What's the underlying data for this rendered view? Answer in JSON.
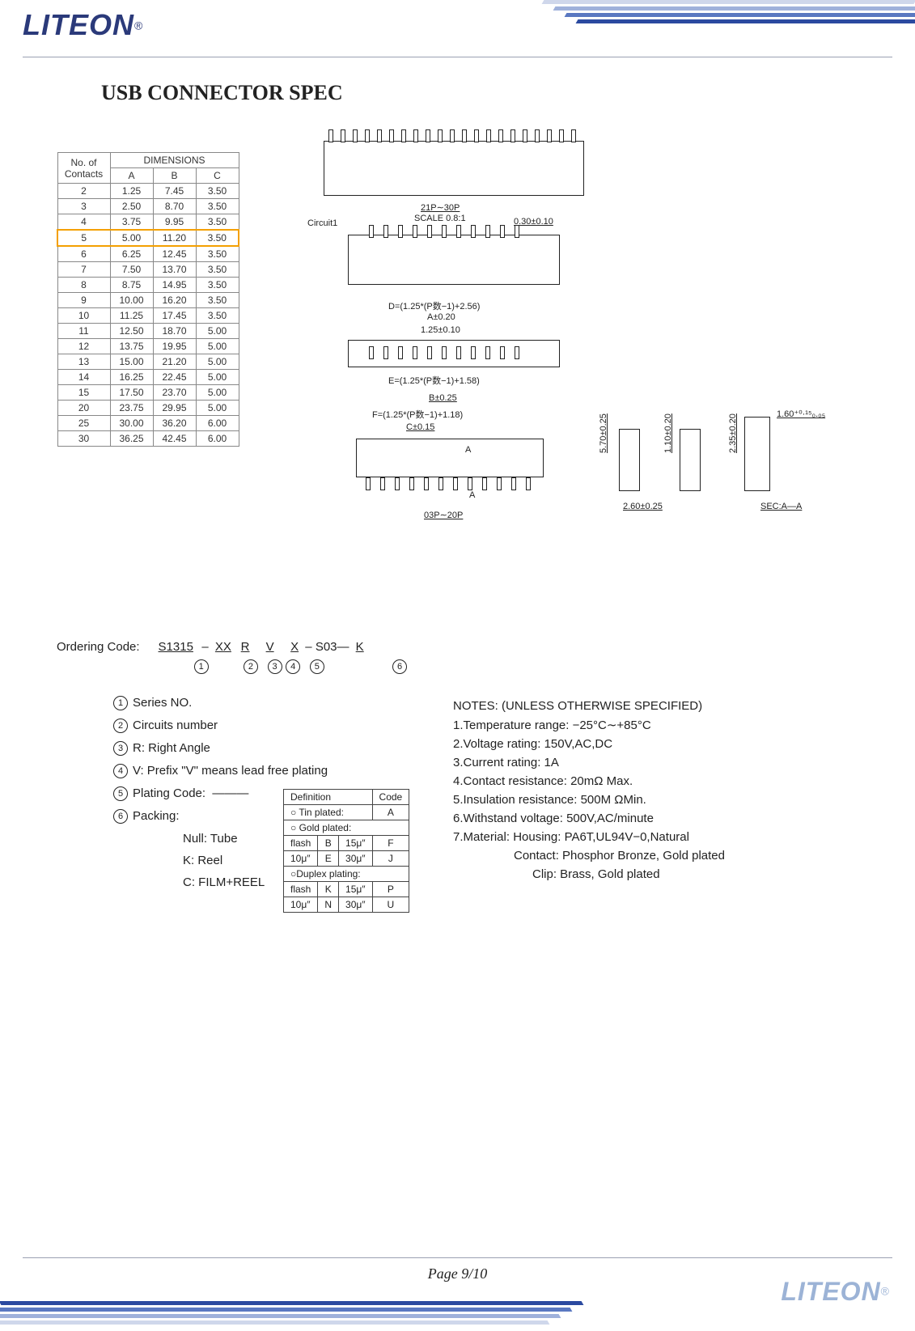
{
  "brand": "LITEON",
  "title_main": "USB C",
  "title_rest1": "ONNECTOR",
  "title_rest2": " S",
  "title_rest3": "PEC",
  "swoosh_colors": [
    "#cfd7eb",
    "#9fb1db",
    "#5a78c1",
    "#2b4aa0"
  ],
  "highlight_color": "#f4a000",
  "dim": {
    "hdr_contacts_1": "No.  of",
    "hdr_contacts_2": "Contacts",
    "hdr_dimensions": "DIMENSIONS",
    "cols": [
      "A",
      "B",
      "C"
    ],
    "highlight_row_index": 3,
    "rows": [
      [
        "2",
        "1.25",
        "7.45",
        "3.50"
      ],
      [
        "3",
        "2.50",
        "8.70",
        "3.50"
      ],
      [
        "4",
        "3.75",
        "9.95",
        "3.50"
      ],
      [
        "5",
        "5.00",
        "11.20",
        "3.50"
      ],
      [
        "6",
        "6.25",
        "12.45",
        "3.50"
      ],
      [
        "7",
        "7.50",
        "13.70",
        "3.50"
      ],
      [
        "8",
        "8.75",
        "14.95",
        "3.50"
      ],
      [
        "9",
        "10.00",
        "16.20",
        "3.50"
      ],
      [
        "10",
        "11.25",
        "17.45",
        "3.50"
      ],
      [
        "11",
        "12.50",
        "18.70",
        "5.00"
      ],
      [
        "12",
        "13.75",
        "19.95",
        "5.00"
      ],
      [
        "13",
        "15.00",
        "21.20",
        "5.00"
      ],
      [
        "14",
        "16.25",
        "22.45",
        "5.00"
      ],
      [
        "15",
        "17.50",
        "23.70",
        "5.00"
      ],
      [
        "20",
        "23.75",
        "29.95",
        "5.00"
      ],
      [
        "25",
        "30.00",
        "36.20",
        "6.00"
      ],
      [
        "30",
        "36.25",
        "42.45",
        "6.00"
      ]
    ]
  },
  "draw": {
    "circuit1": "Circuit1",
    "scale_top": "21P∼30P",
    "scale_bot": "SCALE  0.8:1",
    "d030": "0.30±0.10",
    "dD": "D=(1.25*(P数−1)+2.56)",
    "dA": "A±0.20",
    "d125": "1.25±0.10",
    "dE": "E=(1.25*(P数−1)+1.58)",
    "dB": "B±0.25",
    "dF": "F=(1.25*(P数−1)+1.18)",
    "dC": "C±0.15",
    "aA": "A",
    "d03p": "03P∼20P",
    "d570": "5.70±0.25",
    "d260": "2.60±0.25",
    "d110": "1.10±0.20",
    "d235": "2.35±0.20",
    "d160": "1.60⁺⁰·¹⁵₀.₀₅",
    "sec": "SEC:A—A"
  },
  "order": {
    "label": "Ordering  Code:",
    "seg1": "S1315",
    "seg2": "XX",
    "seg3": "R",
    "seg4": "V",
    "seg5": "X",
    "seg_fixed": "S03—",
    "seg6": "K",
    "dash": "–",
    "c1": "1",
    "c2": "2",
    "c3": "3",
    "c4": "4",
    "c5": "5",
    "c6": "6"
  },
  "legend": {
    "i1": "Series  NO.",
    "i2": "Circuits  number",
    "i3": "R:  Right  Angle",
    "i4": "V:  Prefix  \"V\"  means   lead  free  plating",
    "i5": "Plating  Code:",
    "i6": "Packing:",
    "p_null": "Null:  Tube",
    "p_k": "K:  Reel",
    "p_c": "C:  FILM+REEL"
  },
  "ptab": {
    "def": "Definition",
    "code": "Code",
    "tin": "○ Tin  plated:",
    "gold": "○ Gold  plated:",
    "dup": "○Duplex  plating:",
    "flash": "flash",
    "mu10": "10μ″",
    "mu15": "15μ″",
    "mu30": "30μ″",
    "A": "A",
    "B": "B",
    "E": "E",
    "F": "F",
    "J": "J",
    "K": "K",
    "N": "N",
    "P": "P",
    "U": "U"
  },
  "notes": {
    "title": "NOTES:  (UNLESS  OTHERWISE  SPECIFIED)",
    "l1": "1.Temperature  range:  −25°C∼+85°C",
    "l2": "2.Voltage  rating:  150V,AC,DC",
    "l3": "3.Current  rating:  1A",
    "l4": "4.Contact  resistance:  20mΩ  Max.",
    "l5": "5.Insulation  resistance:  500M  ΩMin.",
    "l6": "6.Withstand  voltage:  500V,AC/minute",
    "l7": "7.Material: Housing:   PA6T,UL94V−0,Natural",
    "l8": "Contact:  Phosphor  Bronze,  Gold  plated",
    "l9": "Clip:  Brass,  Gold  plated"
  },
  "footer_page": "Page 9/10"
}
